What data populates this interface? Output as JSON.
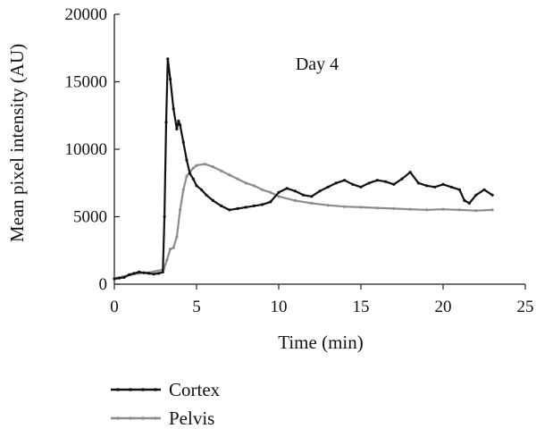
{
  "chart_data": {
    "type": "line",
    "annotation": "Day 4",
    "xlabel": "Time (min)",
    "ylabel": "Mean pixel intensity (AU)",
    "xlim": [
      0,
      25
    ],
    "ylim": [
      0,
      20000
    ],
    "xticks": [
      0,
      5,
      10,
      15,
      20,
      25
    ],
    "yticks": [
      0,
      5000,
      10000,
      15000,
      20000
    ],
    "grid": false,
    "legend_position": "bottom-left",
    "series": [
      {
        "name": "Cortex",
        "color": "#111111",
        "points": [
          [
            0.0,
            400
          ],
          [
            0.3,
            450
          ],
          [
            0.6,
            500
          ],
          [
            0.9,
            700
          ],
          [
            1.2,
            800
          ],
          [
            1.5,
            900
          ],
          [
            1.8,
            850
          ],
          [
            2.1,
            800
          ],
          [
            2.4,
            750
          ],
          [
            2.7,
            800
          ],
          [
            2.95,
            900
          ],
          [
            3.05,
            5000
          ],
          [
            3.15,
            12000
          ],
          [
            3.25,
            16700
          ],
          [
            3.4,
            15200
          ],
          [
            3.6,
            13000
          ],
          [
            3.8,
            11500
          ],
          [
            3.9,
            12100
          ],
          [
            4.0,
            11800
          ],
          [
            4.2,
            10500
          ],
          [
            4.4,
            9200
          ],
          [
            4.6,
            8200
          ],
          [
            4.8,
            7800
          ],
          [
            5.0,
            7300
          ],
          [
            5.3,
            7000
          ],
          [
            5.6,
            6600
          ],
          [
            6.0,
            6200
          ],
          [
            6.5,
            5800
          ],
          [
            7.0,
            5500
          ],
          [
            7.5,
            5600
          ],
          [
            8.0,
            5700
          ],
          [
            8.5,
            5800
          ],
          [
            9.0,
            5900
          ],
          [
            9.5,
            6100
          ],
          [
            10.0,
            6800
          ],
          [
            10.5,
            7100
          ],
          [
            11.0,
            6900
          ],
          [
            11.5,
            6600
          ],
          [
            12.0,
            6500
          ],
          [
            12.5,
            6900
          ],
          [
            13.0,
            7200
          ],
          [
            13.5,
            7500
          ],
          [
            14.0,
            7700
          ],
          [
            14.5,
            7400
          ],
          [
            15.0,
            7200
          ],
          [
            15.5,
            7500
          ],
          [
            16.0,
            7700
          ],
          [
            16.5,
            7600
          ],
          [
            17.0,
            7400
          ],
          [
            17.5,
            7800
          ],
          [
            18.0,
            8300
          ],
          [
            18.5,
            7500
          ],
          [
            19.0,
            7300
          ],
          [
            19.5,
            7200
          ],
          [
            20.0,
            7400
          ],
          [
            20.5,
            7200
          ],
          [
            21.0,
            7000
          ],
          [
            21.3,
            6200
          ],
          [
            21.6,
            6000
          ],
          [
            22.0,
            6600
          ],
          [
            22.5,
            7000
          ],
          [
            23.0,
            6600
          ]
        ]
      },
      {
        "name": "Pelvis",
        "color": "#8c8c8c",
        "points": [
          [
            0.0,
            450
          ],
          [
            0.5,
            550
          ],
          [
            1.0,
            700
          ],
          [
            1.5,
            800
          ],
          [
            2.0,
            850
          ],
          [
            2.5,
            950
          ],
          [
            3.0,
            1100
          ],
          [
            3.2,
            1800
          ],
          [
            3.4,
            2600
          ],
          [
            3.6,
            2700
          ],
          [
            3.8,
            3500
          ],
          [
            4.0,
            5500
          ],
          [
            4.2,
            7000
          ],
          [
            4.4,
            8000
          ],
          [
            4.6,
            8300
          ],
          [
            4.8,
            8600
          ],
          [
            5.0,
            8800
          ],
          [
            5.5,
            8900
          ],
          [
            6.0,
            8700
          ],
          [
            6.5,
            8400
          ],
          [
            7.0,
            8100
          ],
          [
            7.5,
            7800
          ],
          [
            8.0,
            7500
          ],
          [
            8.5,
            7300
          ],
          [
            9.0,
            7000
          ],
          [
            9.5,
            6800
          ],
          [
            10.0,
            6500
          ],
          [
            11.0,
            6200
          ],
          [
            12.0,
            6000
          ],
          [
            13.0,
            5850
          ],
          [
            14.0,
            5750
          ],
          [
            15.0,
            5700
          ],
          [
            16.0,
            5650
          ],
          [
            17.0,
            5600
          ],
          [
            18.0,
            5550
          ],
          [
            19.0,
            5500
          ],
          [
            20.0,
            5550
          ],
          [
            21.0,
            5500
          ],
          [
            22.0,
            5450
          ],
          [
            23.0,
            5500
          ]
        ]
      }
    ]
  }
}
